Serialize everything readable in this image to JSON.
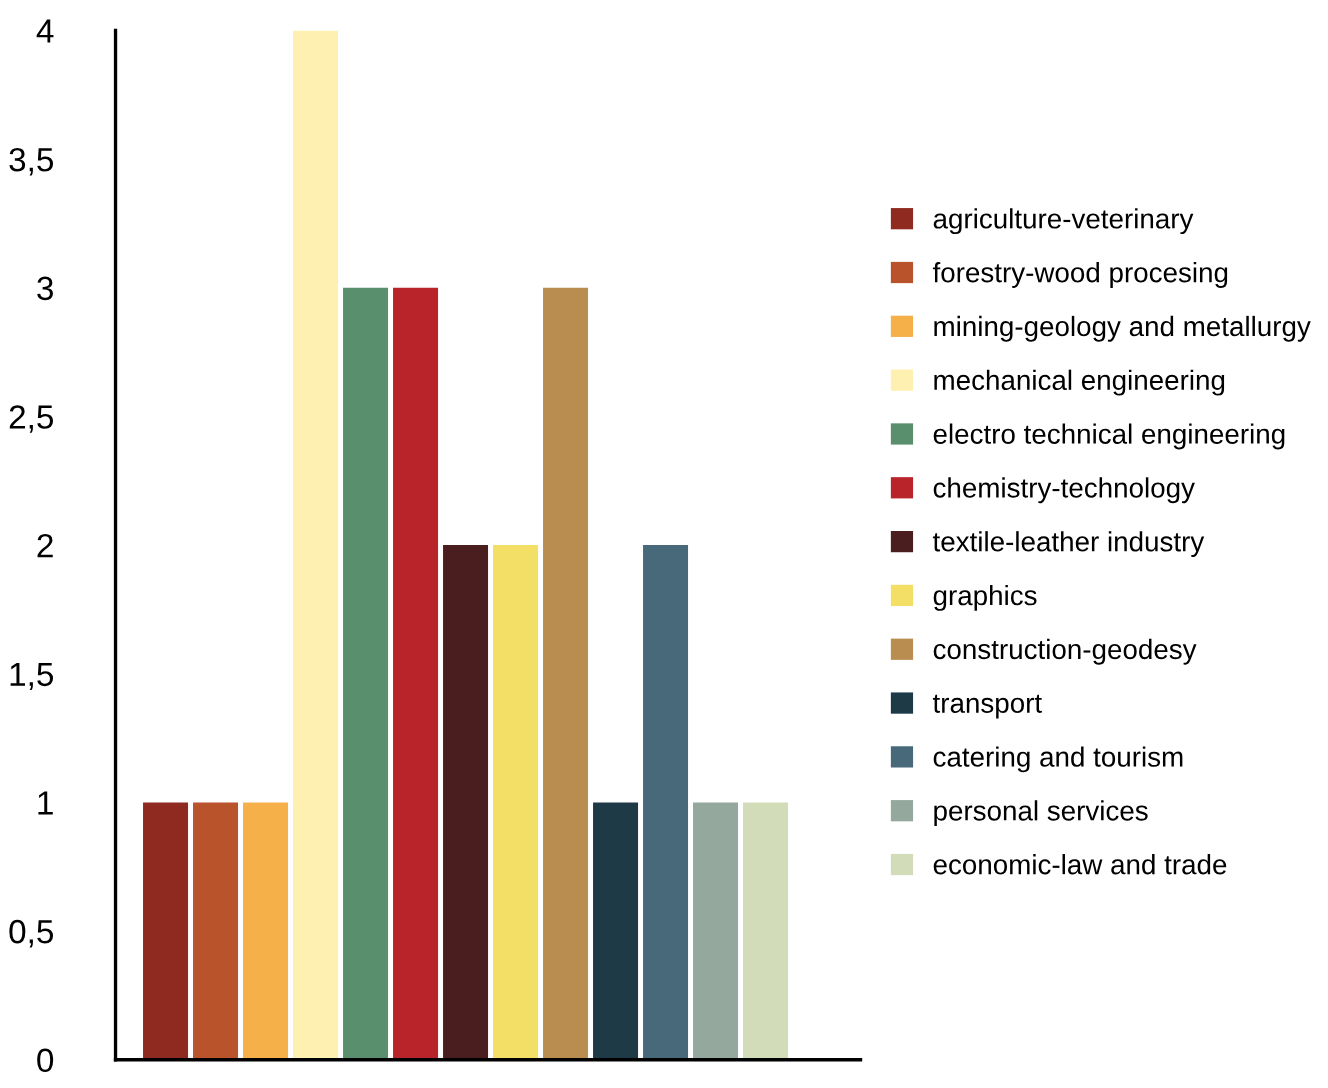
{
  "chart_data": {
    "type": "bar",
    "categories": [
      null,
      null,
      null,
      null,
      null,
      null,
      null,
      null,
      null,
      null,
      null,
      null,
      null
    ],
    "series": [
      {
        "name": "agriculture-veterinary",
        "color": "#8e2a1f",
        "values": [
          1,
          null,
          null,
          null,
          null,
          null,
          null,
          null,
          null,
          null,
          null,
          null,
          null
        ]
      },
      {
        "name": "forestry-wood procesing",
        "color": "#b9532c",
        "values": [
          null,
          1,
          null,
          null,
          null,
          null,
          null,
          null,
          null,
          null,
          null,
          null,
          null
        ]
      },
      {
        "name": "mining-geology and metallurgy",
        "color": "#f5b04a",
        "values": [
          null,
          null,
          1,
          null,
          null,
          null,
          null,
          null,
          null,
          null,
          null,
          null,
          null
        ]
      },
      {
        "name": "mechanical engineering",
        "color": "#fdf0b0",
        "values": [
          null,
          null,
          null,
          4,
          null,
          null,
          null,
          null,
          null,
          null,
          null,
          null,
          null
        ]
      },
      {
        "name": "electro technical engineering",
        "color": "#5a8f6e",
        "values": [
          null,
          null,
          null,
          null,
          3,
          null,
          null,
          null,
          null,
          null,
          null,
          null,
          null
        ]
      },
      {
        "name": "chemistry-technology",
        "color": "#b8242a",
        "values": [
          null,
          null,
          null,
          null,
          null,
          3,
          null,
          null,
          null,
          null,
          null,
          null,
          null
        ]
      },
      {
        "name": "textile-leather industry",
        "color": "#4a1e1e",
        "values": [
          null,
          null,
          null,
          null,
          null,
          null,
          2,
          null,
          null,
          null,
          null,
          null,
          null
        ]
      },
      {
        "name": "graphics",
        "color": "#f3df66",
        "values": [
          null,
          null,
          null,
          null,
          null,
          null,
          null,
          2,
          null,
          null,
          null,
          null,
          null
        ]
      },
      {
        "name": "construction-geodesy",
        "color": "#b98c4f",
        "values": [
          null,
          null,
          null,
          null,
          null,
          null,
          null,
          null,
          3,
          null,
          null,
          null,
          null
        ]
      },
      {
        "name": "transport",
        "color": "#1e3a46",
        "values": [
          null,
          null,
          null,
          null,
          null,
          null,
          null,
          null,
          null,
          1,
          null,
          null,
          null
        ]
      },
      {
        "name": "catering and tourism",
        "color": "#47697a",
        "values": [
          null,
          null,
          null,
          null,
          null,
          null,
          null,
          null,
          null,
          null,
          2,
          null,
          null
        ]
      },
      {
        "name": "personal services",
        "color": "#94a89e",
        "values": [
          null,
          null,
          null,
          null,
          null,
          null,
          null,
          null,
          null,
          null,
          null,
          1,
          null
        ]
      },
      {
        "name": "economic-law and trade",
        "color": "#d3dcb9",
        "values": [
          null,
          null,
          null,
          null,
          null,
          null,
          null,
          null,
          null,
          null,
          null,
          null,
          1
        ]
      }
    ],
    "ylim": [
      0,
      4
    ],
    "yticks": [
      0,
      {
        "value": 0.5,
        "label": "0,5"
      },
      1,
      {
        "value": 1.5,
        "label": "1,5"
      },
      2,
      {
        "value": 2.5,
        "label": "2,5"
      },
      3,
      {
        "value": 3.5,
        "label": "3,5"
      },
      4
    ],
    "stacked": true,
    "grid": false,
    "tick_labels": "y",
    "legend": "right"
  }
}
